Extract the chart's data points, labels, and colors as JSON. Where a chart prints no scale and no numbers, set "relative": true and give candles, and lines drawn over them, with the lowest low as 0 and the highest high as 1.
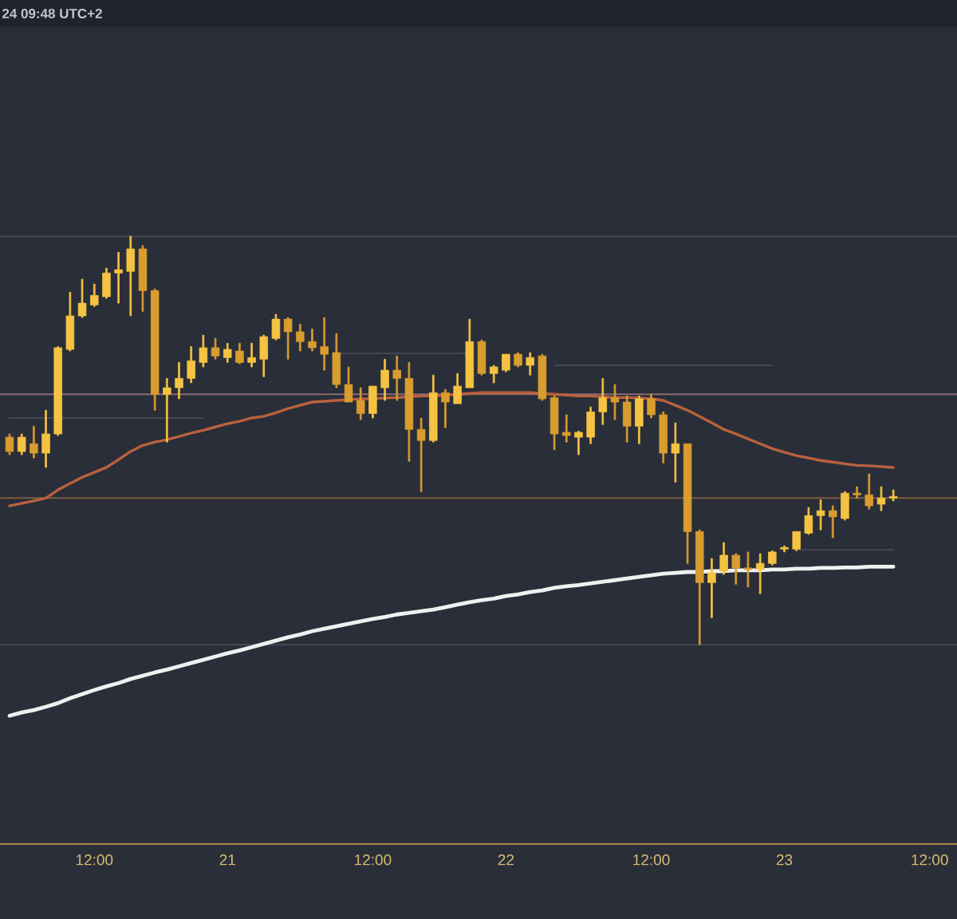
{
  "chart_data": {
    "type": "candlestick",
    "relative": true,
    "tick_labels": "x",
    "annotations": [
      "24 09:48 UTC+2"
    ],
    "categories": [
      null,
      null,
      null,
      null,
      null,
      null,
      null,
      "12:00",
      null,
      null,
      null,
      null,
      null,
      null,
      null,
      null,
      null,
      null,
      "21",
      null,
      null,
      null,
      null,
      null,
      null,
      null,
      null,
      null,
      null,
      null,
      "12:00",
      null,
      null,
      null,
      null,
      null,
      null,
      null,
      null,
      null,
      null,
      "22",
      null,
      null,
      null,
      null,
      null,
      null,
      null,
      null,
      null,
      null,
      null,
      "12:00",
      null,
      null,
      null,
      null,
      null,
      null,
      null,
      null,
      null,
      null,
      "23",
      null,
      null,
      null,
      null,
      null,
      null,
      null,
      null,
      null,
      null,
      null,
      "12:00"
    ],
    "ohlc": [
      [
        0.508,
        0.516,
        0.465,
        0.473
      ],
      [
        0.473,
        0.516,
        0.465,
        0.508
      ],
      [
        0.492,
        0.535,
        0.457,
        0.469
      ],
      [
        0.469,
        0.574,
        0.434,
        0.516
      ],
      [
        0.516,
        0.73,
        0.512,
        0.727
      ],
      [
        0.723,
        0.863,
        0.719,
        0.805
      ],
      [
        0.805,
        0.895,
        0.801,
        0.836
      ],
      [
        0.832,
        0.883,
        0.828,
        0.855
      ],
      [
        0.852,
        0.922,
        0.848,
        0.91
      ],
      [
        0.91,
        0.961,
        0.836,
        0.918
      ],
      [
        0.914,
        1,
        0.805,
        0.969
      ],
      [
        0.969,
        0.977,
        0.816,
        0.867
      ],
      [
        0.867,
        0.871,
        0.574,
        0.613
      ],
      [
        0.613,
        0.652,
        0.496,
        0.629
      ],
      [
        0.629,
        0.691,
        0.602,
        0.652
      ],
      [
        0.652,
        0.73,
        0.641,
        0.695
      ],
      [
        0.691,
        0.758,
        0.68,
        0.727
      ],
      [
        0.727,
        0.75,
        0.699,
        0.707
      ],
      [
        0.703,
        0.738,
        0.691,
        0.723
      ],
      [
        0.719,
        0.738,
        0.688,
        0.691
      ],
      [
        0.691,
        0.738,
        0.68,
        0.703
      ],
      [
        0.699,
        0.758,
        0.656,
        0.754
      ],
      [
        0.75,
        0.809,
        0.746,
        0.797
      ],
      [
        0.797,
        0.801,
        0.699,
        0.766
      ],
      [
        0.766,
        0.785,
        0.719,
        0.742
      ],
      [
        0.742,
        0.773,
        0.719,
        0.727
      ],
      [
        0.73,
        0.801,
        0.672,
        0.711
      ],
      [
        0.715,
        0.762,
        0.629,
        0.637
      ],
      [
        0.637,
        0.68,
        0.594,
        0.594
      ],
      [
        0.598,
        0.629,
        0.551,
        0.566
      ],
      [
        0.566,
        0.633,
        0.555,
        0.633
      ],
      [
        0.629,
        0.699,
        0.598,
        0.672
      ],
      [
        0.672,
        0.707,
        0.598,
        0.652
      ],
      [
        0.652,
        0.691,
        0.449,
        0.527
      ],
      [
        0.527,
        0.555,
        0.375,
        0.5
      ],
      [
        0.5,
        0.66,
        0.496,
        0.617
      ],
      [
        0.617,
        0.625,
        0.531,
        0.594
      ],
      [
        0.59,
        0.664,
        0.59,
        0.633
      ],
      [
        0.629,
        0.797,
        0.629,
        0.742
      ],
      [
        0.742,
        0.746,
        0.66,
        0.664
      ],
      [
        0.664,
        0.684,
        0.641,
        0.68
      ],
      [
        0.672,
        0.711,
        0.668,
        0.711
      ],
      [
        0.711,
        0.715,
        0.68,
        0.684
      ],
      [
        0.684,
        0.715,
        0.66,
        0.703
      ],
      [
        0.707,
        0.711,
        0.598,
        0.602
      ],
      [
        0.605,
        0.609,
        0.477,
        0.516
      ],
      [
        0.52,
        0.563,
        0.496,
        0.512
      ],
      [
        0.508,
        0.523,
        0.465,
        0.52
      ],
      [
        0.508,
        0.582,
        0.492,
        0.57
      ],
      [
        0.57,
        0.652,
        0.539,
        0.605
      ],
      [
        0.605,
        0.637,
        0.551,
        0.594
      ],
      [
        0.594,
        0.609,
        0.496,
        0.535
      ],
      [
        0.535,
        0.609,
        0.492,
        0.602
      ],
      [
        0.602,
        0.613,
        0.555,
        0.563
      ],
      [
        0.563,
        0.57,
        0.445,
        0.469
      ],
      [
        0.469,
        0.543,
        0.398,
        0.492
      ],
      [
        0.492,
        0.492,
        0.199,
        0.277
      ],
      [
        0.277,
        0.281,
        0,
        0.152
      ],
      [
        0.152,
        0.211,
        0.066,
        0.176
      ],
      [
        0.18,
        0.25,
        0.172,
        0.219
      ],
      [
        0.219,
        0.223,
        0.148,
        0.188
      ],
      [
        0.188,
        0.227,
        0.141,
        0.184
      ],
      [
        0.184,
        0.223,
        0.125,
        0.199
      ],
      [
        0.199,
        0.23,
        0.195,
        0.227
      ],
      [
        0.234,
        0.242,
        0.227,
        0.238
      ],
      [
        0.234,
        0.277,
        0.23,
        0.277
      ],
      [
        0.273,
        0.336,
        0.27,
        0.316
      ],
      [
        0.316,
        0.355,
        0.281,
        0.328
      ],
      [
        0.328,
        0.34,
        0.262,
        0.313
      ],
      [
        0.309,
        0.375,
        0.305,
        0.371
      ],
      [
        0.371,
        0.387,
        0.359,
        0.367
      ],
      [
        0.367,
        0.418,
        0.332,
        0.34
      ],
      [
        0.344,
        0.387,
        0.328,
        0.359
      ],
      [
        0.359,
        0.379,
        0.352,
        0.363
      ],
      null,
      null,
      null
    ],
    "colors": [
      "#d99c2e",
      "#f5c342",
      "#d99c2e",
      "#f5c342",
      "#f5c342",
      "#f5c342",
      "#f5c342",
      "#f5c342",
      "#f5c342",
      "#f5c342",
      "#f5c342",
      "#d99c2e",
      "#d99c2e",
      "#f5c342",
      "#f5c342",
      "#f5c342",
      "#f5c342",
      "#d99c2e",
      "#f5c342",
      "#d99c2e",
      "#f5c342",
      "#f5c342",
      "#f5c342",
      "#d99c2e",
      "#d99c2e",
      "#d99c2e",
      "#d99c2e",
      "#d99c2e",
      "#d99c2e",
      "#d99c2e",
      "#f5c342",
      "#f5c342",
      "#d99c2e",
      "#d99c2e",
      "#d99c2e",
      "#f5c342",
      "#d99c2e",
      "#f5c342",
      "#f5c342",
      "#d99c2e",
      "#f5c342",
      "#f5c342",
      "#d99c2e",
      "#f5c342",
      "#d99c2e",
      "#d99c2e",
      "#d99c2e",
      "#f5c342",
      "#f5c342",
      "#f5c342",
      "#d99c2e",
      "#d99c2e",
      "#f5c342",
      "#d99c2e",
      "#d99c2e",
      "#f5c342",
      "#d99c2e",
      "#d99c2e",
      "#f5c342",
      "#f5c342",
      "#d99c2e",
      "#d99c2e",
      "#f5c342",
      "#f5c342",
      "#f5c342",
      "#f5c342",
      "#f5c342",
      "#f5c342",
      "#d99c2e",
      "#f5c342",
      "#d99c2e",
      "#d99c2e",
      "#f5c342",
      "#f5c342",
      null,
      null,
      null
    ],
    "series": [
      {
        "type": "line",
        "color": "#434855",
        "values": [
          0.555,
          0.555,
          0.555,
          0.555,
          0.555,
          0.555,
          0.555,
          0.555,
          0.555,
          0.555,
          0.555,
          0.555,
          0.555,
          0.555,
          0.555,
          0.555,
          0.555,
          null,
          null,
          null,
          null,
          null,
          null,
          null,
          null,
          null,
          null,
          null,
          null,
          null,
          null,
          null,
          null,
          null,
          null,
          null,
          null,
          null,
          null,
          null,
          null,
          null,
          null,
          null,
          null,
          null,
          null,
          null,
          null,
          null,
          null,
          null,
          null,
          null,
          null,
          null,
          null,
          null,
          null,
          null,
          null,
          null,
          null,
          null,
          null,
          null,
          null,
          null,
          null,
          null,
          null,
          null,
          null,
          null,
          null,
          null,
          null
        ]
      },
      {
        "type": "line",
        "color": "#434855",
        "values": [
          null,
          null,
          null,
          null,
          null,
          null,
          null,
          null,
          null,
          null,
          null,
          null,
          null,
          null,
          null,
          null,
          null,
          null,
          null,
          null,
          null,
          null,
          null,
          null,
          null,
          null,
          null,
          0.713,
          0.713,
          0.713,
          0.713,
          0.713,
          0.713,
          0.713,
          0.713,
          0.713,
          0.713,
          0.713,
          0.713,
          null,
          null,
          null,
          null,
          null,
          null,
          null,
          null,
          null,
          null,
          null,
          null,
          null,
          null,
          null,
          null,
          null,
          null,
          null,
          null,
          null,
          null,
          null,
          null,
          null,
          null,
          null,
          null,
          null,
          null,
          null,
          null,
          null,
          null,
          null,
          null,
          null,
          null
        ]
      },
      {
        "type": "line",
        "color": "#434855",
        "values": [
          null,
          null,
          null,
          null,
          null,
          null,
          null,
          null,
          null,
          null,
          null,
          null,
          null,
          null,
          null,
          null,
          null,
          null,
          null,
          null,
          null,
          null,
          null,
          null,
          null,
          null,
          null,
          null,
          null,
          null,
          null,
          null,
          null,
          null,
          null,
          null,
          null,
          null,
          null,
          null,
          null,
          null,
          null,
          null,
          null,
          0.684,
          0.684,
          0.684,
          0.684,
          0.684,
          0.684,
          0.684,
          0.684,
          0.684,
          0.684,
          0.684,
          0.684,
          0.684,
          0.684,
          0.684,
          0.684,
          0.684,
          0.684,
          0.684,
          null,
          null,
          null,
          null,
          null,
          null,
          null,
          null,
          null,
          null,
          null,
          null,
          null
        ]
      },
      {
        "type": "line",
        "color": "#434855",
        "values": [
          null,
          null,
          null,
          null,
          null,
          null,
          null,
          null,
          null,
          null,
          null,
          null,
          null,
          null,
          null,
          null,
          null,
          null,
          null,
          null,
          null,
          null,
          null,
          null,
          null,
          null,
          null,
          null,
          null,
          null,
          null,
          null,
          null,
          null,
          null,
          null,
          null,
          null,
          null,
          null,
          null,
          null,
          null,
          null,
          null,
          null,
          null,
          null,
          null,
          null,
          null,
          null,
          null,
          null,
          null,
          null,
          null,
          null,
          null,
          null,
          null,
          null,
          null,
          null,
          null,
          0.232,
          0.232,
          0.232,
          0.232,
          0.232,
          0.232,
          0.232,
          0.232,
          0.232,
          null,
          null,
          null
        ]
      },
      {
        "type": "line",
        "color": "#b9613f",
        "values": [
          0.34,
          0.346,
          0.352,
          0.359,
          0.379,
          0.395,
          0.41,
          0.422,
          0.434,
          0.453,
          0.473,
          0.488,
          0.496,
          0.502,
          0.51,
          0.518,
          0.525,
          0.533,
          0.541,
          0.547,
          0.555,
          0.559,
          0.568,
          0.578,
          0.586,
          0.594,
          0.596,
          0.598,
          0.6,
          0.602,
          0.602,
          0.604,
          0.605,
          0.607,
          0.609,
          0.609,
          0.611,
          0.613,
          0.615,
          0.617,
          0.617,
          0.617,
          0.617,
          0.617,
          0.615,
          0.613,
          0.611,
          0.609,
          0.609,
          0.607,
          0.605,
          0.605,
          0.604,
          0.602,
          0.598,
          0.586,
          0.574,
          0.559,
          0.543,
          0.527,
          0.516,
          0.504,
          0.492,
          0.48,
          0.471,
          0.463,
          0.457,
          0.451,
          0.447,
          0.443,
          0.439,
          0.438,
          0.436,
          0.434,
          null,
          null,
          null
        ]
      },
      {
        "type": "line",
        "color": "#f0f0f0",
        "values": [
          -0.174,
          -0.166,
          -0.16,
          -0.152,
          -0.143,
          -0.131,
          -0.121,
          -0.111,
          -0.102,
          -0.094,
          -0.084,
          -0.076,
          -0.068,
          -0.061,
          -0.053,
          -0.045,
          -0.037,
          -0.029,
          -0.021,
          -0.014,
          -0.006,
          0.002,
          0.01,
          0.018,
          0.025,
          0.033,
          0.039,
          0.045,
          0.051,
          0.057,
          0.063,
          0.068,
          0.074,
          0.078,
          0.082,
          0.086,
          0.092,
          0.098,
          0.104,
          0.109,
          0.113,
          0.119,
          0.123,
          0.129,
          0.133,
          0.139,
          0.143,
          0.146,
          0.15,
          0.154,
          0.158,
          0.162,
          0.166,
          0.17,
          0.174,
          0.176,
          0.178,
          0.178,
          0.18,
          0.18,
          0.182,
          0.182,
          0.182,
          0.184,
          0.184,
          0.186,
          0.186,
          0.188,
          0.188,
          0.189,
          0.189,
          0.191,
          0.191,
          0.191,
          null,
          null,
          null
        ]
      }
    ],
    "ref_lines": [
      {
        "axis": "y",
        "value": 0.613,
        "color": "#8e6a73",
        "line_style": "solid"
      },
      {
        "axis": "y",
        "value": 0.359,
        "color": "#7d5c3e",
        "line_style": "solid"
      },
      {
        "axis": "y",
        "value": 1,
        "color": "#434855",
        "line_style": "solid"
      },
      {
        "axis": "y",
        "value": 0,
        "color": "#434855",
        "line_style": "solid"
      }
    ]
  }
}
